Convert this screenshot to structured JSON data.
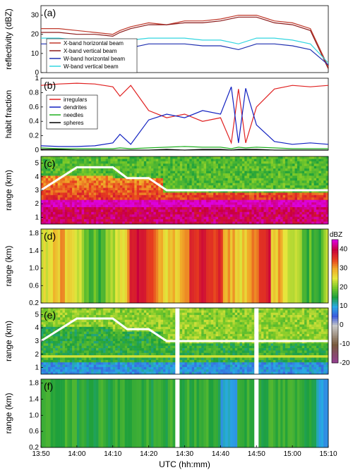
{
  "chart_data": [
    {
      "type": "line",
      "panel": "(a)",
      "ylabel": "reflectivity (dBZ)",
      "ylim": [
        0,
        35
      ],
      "yticks": [
        0,
        10,
        20,
        30
      ],
      "x": [
        "13:50",
        "13:55",
        "14:00",
        "14:05",
        "14:10",
        "14:12",
        "14:15",
        "14:20",
        "14:25",
        "14:30",
        "14:35",
        "14:40",
        "14:45",
        "14:50",
        "14:55",
        "15:00",
        "15:05",
        "15:10"
      ],
      "series": [
        {
          "name": "X-band horizontal beam",
          "color": "#c0392b",
          "values": [
            23,
            23,
            22,
            21,
            20,
            22,
            24,
            26,
            25,
            27,
            27,
            28,
            30,
            30,
            27,
            26,
            23,
            3
          ]
        },
        {
          "name": "X-band vertical beam",
          "color": "#8b1a1a",
          "values": [
            21,
            21,
            20,
            20,
            19,
            21,
            23,
            25,
            25,
            26,
            26,
            27,
            29,
            29,
            26,
            25,
            22,
            2
          ]
        },
        {
          "name": "W-band horizontal beam",
          "color": "#1f2fb0",
          "values": [
            15,
            15,
            15,
            14,
            13,
            14,
            13,
            15,
            15,
            15,
            14,
            14,
            12,
            15,
            15,
            14,
            12,
            4
          ]
        },
        {
          "name": "W-band vertical beam",
          "color": "#33d6e0",
          "values": [
            18,
            18,
            17,
            17,
            16,
            17,
            17,
            18,
            18,
            18,
            17,
            17,
            15,
            18,
            18,
            17,
            15,
            5
          ]
        }
      ]
    },
    {
      "type": "line",
      "panel": "(b)",
      "ylabel": "habit fraction",
      "ylim": [
        0,
        1
      ],
      "yticks": [
        0,
        0.2,
        0.4,
        0.6,
        0.8,
        1
      ],
      "x": [
        "13:50",
        "13:55",
        "14:00",
        "14:05",
        "14:10",
        "14:12",
        "14:15",
        "14:20",
        "14:25",
        "14:30",
        "14:35",
        "14:40",
        "14:43",
        "14:45",
        "14:47",
        "14:50",
        "14:55",
        "15:00",
        "15:05",
        "15:10"
      ],
      "series": [
        {
          "name": "irregulars",
          "color": "#e02020",
          "values": [
            0.9,
            0.92,
            0.93,
            0.92,
            0.88,
            0.75,
            0.9,
            0.55,
            0.45,
            0.5,
            0.4,
            0.45,
            0.1,
            0.85,
            0.1,
            0.6,
            0.85,
            0.9,
            0.88,
            0.9
          ]
        },
        {
          "name": "dendrites",
          "color": "#1020c0",
          "values": [
            0.06,
            0.05,
            0.05,
            0.06,
            0.1,
            0.22,
            0.08,
            0.42,
            0.5,
            0.45,
            0.55,
            0.5,
            0.88,
            0.1,
            0.86,
            0.35,
            0.12,
            0.08,
            0.1,
            0.08
          ]
        },
        {
          "name": "needles",
          "color": "#20b020",
          "values": [
            0.03,
            0.02,
            0.02,
            0.02,
            0.02,
            0.03,
            0.02,
            0.03,
            0.04,
            0.05,
            0.04,
            0.04,
            0.02,
            0.04,
            0.03,
            0.04,
            0.03,
            0.02,
            0.02,
            0.02
          ]
        },
        {
          "name": "spheres",
          "color": "#000000",
          "values": [
            0.01,
            0.01,
            0.0,
            0.0,
            0.0,
            0.0,
            0.0,
            0.0,
            0.01,
            0.0,
            0.01,
            0.01,
            0.0,
            0.01,
            0.01,
            0.01,
            0.0,
            0.0,
            0.0,
            0.0
          ]
        }
      ]
    },
    {
      "type": "heatmap",
      "panel": "(c)",
      "ylabel": "range (km)",
      "ylim": [
        0.5,
        5.5
      ],
      "yticks": [
        1,
        2,
        3,
        4,
        5
      ],
      "description_value": "X-band range-time reflectivity"
    },
    {
      "type": "heatmap",
      "panel": "(d)",
      "ylabel": "range (km)",
      "ylim": [
        0.2,
        1.9
      ],
      "yticks": [
        0.2,
        0.6,
        1.0,
        1.4,
        1.8
      ]
    },
    {
      "type": "heatmap",
      "panel": "(e)",
      "ylabel": "range (km)",
      "ylim": [
        0.5,
        5.5
      ],
      "yticks": [
        1,
        2,
        3,
        4,
        5
      ]
    },
    {
      "type": "heatmap",
      "panel": "(f)",
      "ylabel": "range (km)",
      "ylim": [
        0.2,
        1.9
      ],
      "yticks": [
        0.2,
        0.6,
        1.0,
        1.4,
        1.8
      ]
    }
  ],
  "colorbar": {
    "label": "dBZ",
    "ticks": [
      -20,
      -10,
      0,
      10,
      20,
      30,
      40
    ],
    "range": [
      -20,
      45
    ]
  },
  "xaxis": {
    "label": "UTC (hh:mm)",
    "ticks": [
      "13:50",
      "14:00",
      "14:10",
      "14:20",
      "14:30",
      "14:40",
      "14:50",
      "15:00",
      "15:10"
    ]
  }
}
